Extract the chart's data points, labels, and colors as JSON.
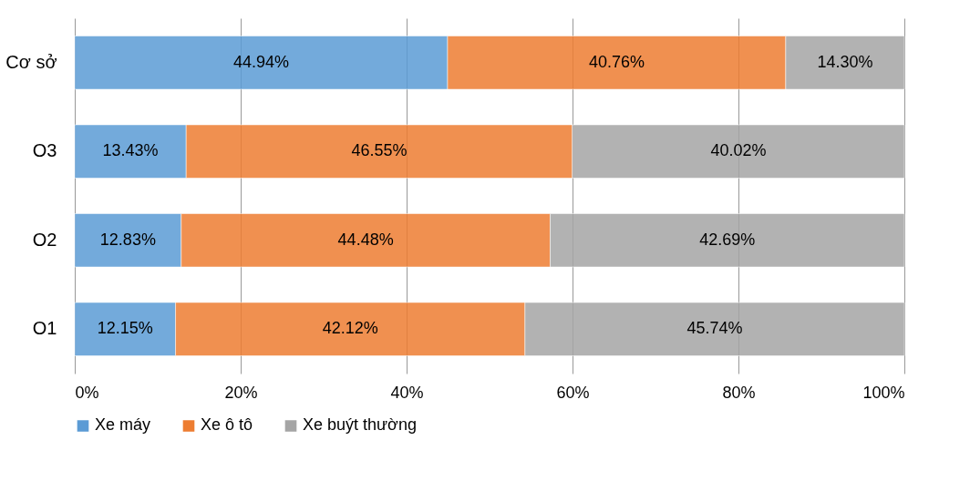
{
  "chart_data": {
    "type": "bar",
    "orientation": "horizontal",
    "stacked": true,
    "categories": [
      "Cơ sở",
      "O3",
      "O2",
      "O1"
    ],
    "series": [
      {
        "name": "Xe máy",
        "color": "#5b9bd5",
        "values": [
          44.94,
          13.43,
          12.83,
          12.15
        ],
        "value_labels": [
          "44.94%",
          "13.43%",
          "12.83%",
          "12.15%"
        ]
      },
      {
        "name": "Xe ô tô",
        "color": "#ed7d31",
        "values": [
          40.76,
          46.55,
          44.48,
          42.12
        ],
        "value_labels": [
          "40.76%",
          "46.55%",
          "44.48%",
          "42.12%"
        ]
      },
      {
        "name": "Xe buýt thường",
        "color": "#a5a5a5",
        "values": [
          14.3,
          40.02,
          42.69,
          45.74
        ],
        "value_labels": [
          "14.30%",
          "40.02%",
          "42.69%",
          "45.74%"
        ]
      }
    ],
    "xlim": [
      0,
      100
    ],
    "xticks": [
      {
        "value": 0,
        "label": "0%"
      },
      {
        "value": 20,
        "label": "20%"
      },
      {
        "value": 40,
        "label": "40%"
      },
      {
        "value": 60,
        "label": "60%"
      },
      {
        "value": 80,
        "label": "80%"
      },
      {
        "value": 100,
        "label": "100%"
      }
    ],
    "grid": "x",
    "legend": "bottom"
  }
}
